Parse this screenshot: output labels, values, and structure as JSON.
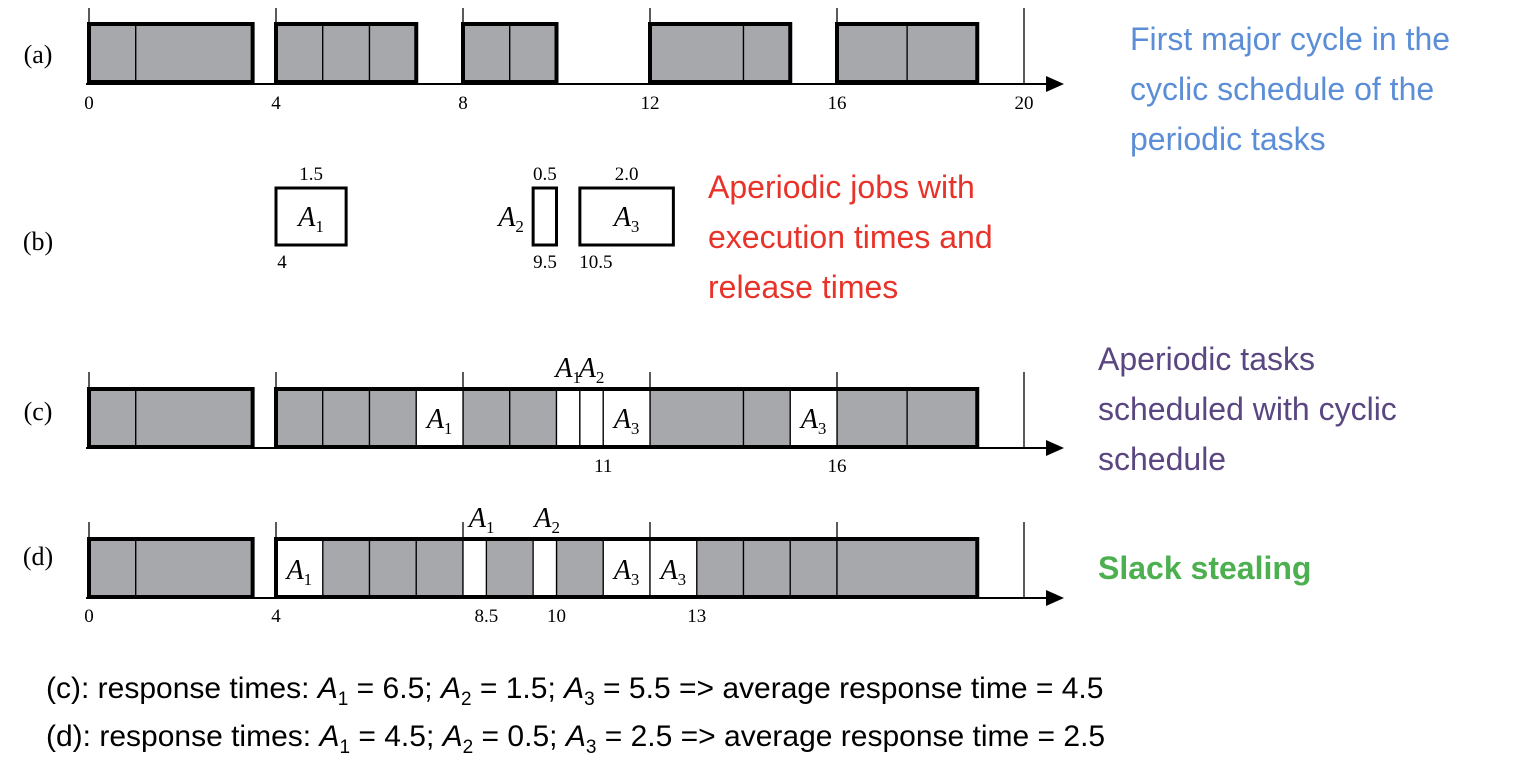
{
  "rows": {
    "a": {
      "label": "(a)",
      "ticks": [
        "0",
        "4",
        "8",
        "12",
        "16",
        "20"
      ],
      "slices": [
        [
          0,
          1
        ],
        [
          1,
          3.5
        ],
        [
          4,
          5
        ],
        [
          5,
          6
        ],
        [
          6,
          7
        ],
        [
          8,
          9
        ],
        [
          9,
          10
        ],
        [
          12,
          14
        ],
        [
          14,
          15
        ],
        [
          16,
          17.5
        ],
        [
          17.5,
          19
        ]
      ]
    },
    "b": {
      "label": "(b)",
      "jobs": [
        {
          "name": "A",
          "sub": "1",
          "exec": "1.5",
          "release": "4",
          "start": 4,
          "duration": 1.5
        },
        {
          "name": "A",
          "sub": "2",
          "exec": "0.5",
          "release": "9.5",
          "start": 9.5,
          "duration": 0.5
        },
        {
          "name": "A",
          "sub": "3",
          "exec": "2.0",
          "release": "10.5",
          "start": 10.5,
          "duration": 2.0
        }
      ]
    },
    "c": {
      "label": "(c)",
      "ticks": [
        "11",
        "16"
      ],
      "gray_slices": [
        [
          0,
          1
        ],
        [
          1,
          3.5
        ],
        [
          4,
          5
        ],
        [
          5,
          6
        ],
        [
          6,
          7
        ],
        [
          8,
          9
        ],
        [
          9,
          10
        ],
        [
          12,
          14
        ],
        [
          14,
          15
        ],
        [
          16,
          17.5
        ],
        [
          17.5,
          19
        ]
      ],
      "aperiodic_slices": [
        {
          "from": 7,
          "to": 8,
          "name": "A",
          "sub": "1"
        },
        {
          "from": 10,
          "to": 10.5,
          "name": "",
          "sub": ""
        },
        {
          "from": 10.5,
          "to": 11,
          "name": "",
          "sub": ""
        },
        {
          "from": 11,
          "to": 12,
          "name": "A",
          "sub": "3"
        },
        {
          "from": 15,
          "to": 16,
          "name": "A",
          "sub": "3"
        }
      ],
      "top_labels": [
        {
          "name": "A",
          "sub": "1",
          "at": 10.25
        },
        {
          "name": "A",
          "sub": "2",
          "at": 10.75
        }
      ]
    },
    "d": {
      "label": "(d)",
      "ticks": [
        "0",
        "4",
        "8.5",
        "10",
        "13"
      ],
      "gray_slices": [
        [
          0,
          1
        ],
        [
          1,
          3.5
        ],
        [
          5,
          6
        ],
        [
          6,
          7
        ],
        [
          7,
          8
        ],
        [
          8.5,
          9.5
        ],
        [
          10,
          11
        ],
        [
          13,
          14
        ],
        [
          14,
          15
        ],
        [
          15,
          16
        ],
        [
          16,
          19
        ]
      ],
      "aperiodic_slices": [
        {
          "from": 4,
          "to": 5,
          "name": "A",
          "sub": "1"
        },
        {
          "from": 8,
          "to": 8.5,
          "name": "",
          "sub": ""
        },
        {
          "from": 9.5,
          "to": 10,
          "name": "",
          "sub": ""
        },
        {
          "from": 11,
          "to": 12,
          "name": "A",
          "sub": "3"
        },
        {
          "from": 12,
          "to": 13,
          "name": "A",
          "sub": "3"
        }
      ],
      "top_labels": [
        {
          "name": "A",
          "sub": "1",
          "at": 8.4
        },
        {
          "name": "A",
          "sub": "2",
          "at": 9.8
        }
      ]
    }
  },
  "notes": {
    "a": {
      "lines": [
        "First major cycle in the",
        "cyclic schedule of the",
        "periodic tasks"
      ],
      "color": "#5b8ed6"
    },
    "b": {
      "lines": [
        "Aperiodic jobs with",
        "execution times and",
        "release times"
      ],
      "color": "#e8332a"
    },
    "c": {
      "lines": [
        "Aperiodic tasks",
        "scheduled with cyclic",
        "schedule"
      ],
      "color": "#5a4680"
    },
    "d": {
      "lines": [
        "Slack stealing"
      ],
      "color": "#4caf50"
    }
  },
  "responses": {
    "c": {
      "prefix": "(c): response times: ",
      "a1": "6.5",
      "a2": "1.5",
      "a3": "5.5",
      "avg_label": " => average response time = ",
      "avg": "4.5"
    },
    "d": {
      "prefix": "(d): response times: ",
      "a1": "4.5",
      "a2": "0.5",
      "a3": "2.5",
      "avg_label": " => average response time = ",
      "avg": "2.5"
    }
  },
  "colors": {
    "gray": "#a7a8ab",
    "aperiodic": "#ffffff",
    "line": "#000000"
  }
}
